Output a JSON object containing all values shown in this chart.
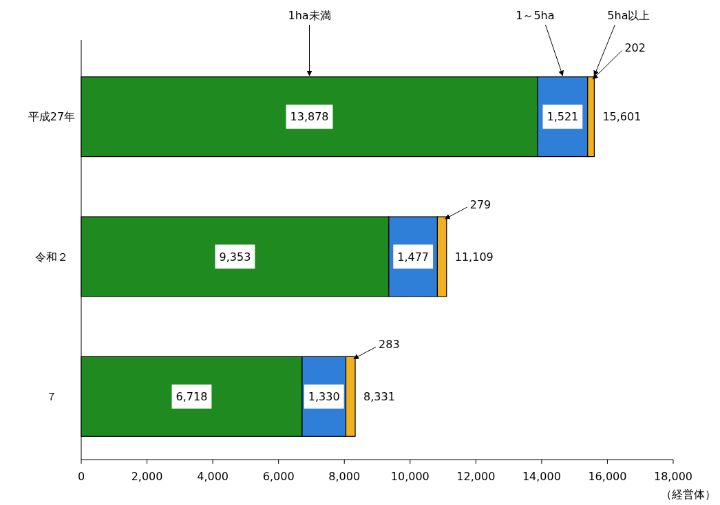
{
  "chart_data": {
    "type": "bar",
    "orientation": "horizontal",
    "stacked": true,
    "categories": [
      "平成27年",
      "令和２",
      "７"
    ],
    "series": [
      {
        "name": "1ha未満",
        "color": "#1f8a1f",
        "values": [
          13878,
          9353,
          6718
        ],
        "value_labels": [
          "13,878",
          "9,353",
          "6,718"
        ]
      },
      {
        "name": "1～5ha",
        "color": "#2f7fd8",
        "values": [
          1521,
          1477,
          1330
        ],
        "value_labels": [
          "1,521",
          "1,477",
          "1,330"
        ]
      },
      {
        "name": "5ha以上",
        "color": "#f0b020",
        "values": [
          202,
          279,
          283
        ],
        "value_labels": [
          "202",
          "279",
          "283"
        ]
      }
    ],
    "totals": [
      "15,601",
      "11,109",
      "8,331"
    ],
    "xlim": [
      0,
      18000
    ],
    "xticks": [
      0,
      {
        "value": 2000,
        "label": "2,000"
      },
      {
        "value": 4000,
        "label": "4,000"
      },
      {
        "value": 6000,
        "label": "6,000"
      },
      {
        "value": 8000,
        "label": "8,000"
      },
      {
        "value": 10000,
        "label": "10,000"
      },
      {
        "value": 12000,
        "label": "12,000"
      },
      {
        "value": 14000,
        "label": "14,000"
      },
      {
        "value": 16000,
        "label": "16,000"
      },
      {
        "value": 18000,
        "label": "18,000"
      }
    ],
    "xlabel": "（経営体）",
    "grid": false
  }
}
